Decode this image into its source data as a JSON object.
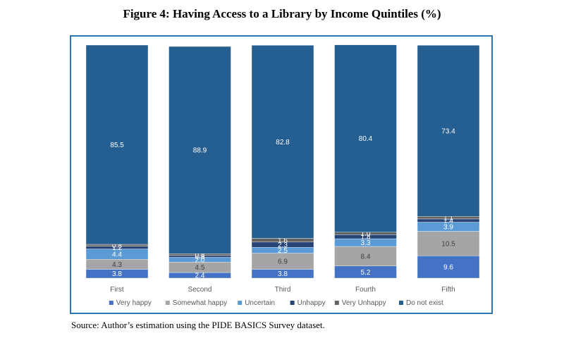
{
  "header": {
    "title": "Figure 4: Having Access to a Library by Income Quintiles (%)"
  },
  "footer": {
    "source": "Source: Author’s estimation using the PIDE BASICS Survey dataset."
  },
  "chart_data": {
    "type": "bar",
    "stacked": true,
    "categories": [
      "First",
      "Second",
      "Third",
      "Fourth",
      "Fifth"
    ],
    "series": [
      {
        "name": "Very happy",
        "color": "#4472C4",
        "values": [
          3.8,
          2.4,
          3.8,
          5.2,
          9.6
        ]
      },
      {
        "name": "Somewhat happy",
        "color": "#A5A5A5",
        "values": [
          4.3,
          4.5,
          6.9,
          8.4,
          10.5
        ]
      },
      {
        "name": "Uncertain",
        "color": "#5B9BD5",
        "values": [
          4.4,
          2.0,
          2.5,
          3.3,
          3.9
        ]
      },
      {
        "name": "Unhappy",
        "color": "#264478",
        "values": [
          1.2,
          0.8,
          2.3,
          1.8,
          1.4
        ]
      },
      {
        "name": "Very Unhappy",
        "color": "#636363",
        "values": [
          0.8,
          0.8,
          1.6,
          1.0,
          1.1
        ]
      },
      {
        "name": "Do not exist",
        "color": "#255E91",
        "values": [
          85.5,
          88.9,
          82.8,
          80.4,
          73.4
        ]
      }
    ],
    "ylim": [
      0,
      100
    ],
    "grid": false,
    "legend_position": "bottom"
  }
}
